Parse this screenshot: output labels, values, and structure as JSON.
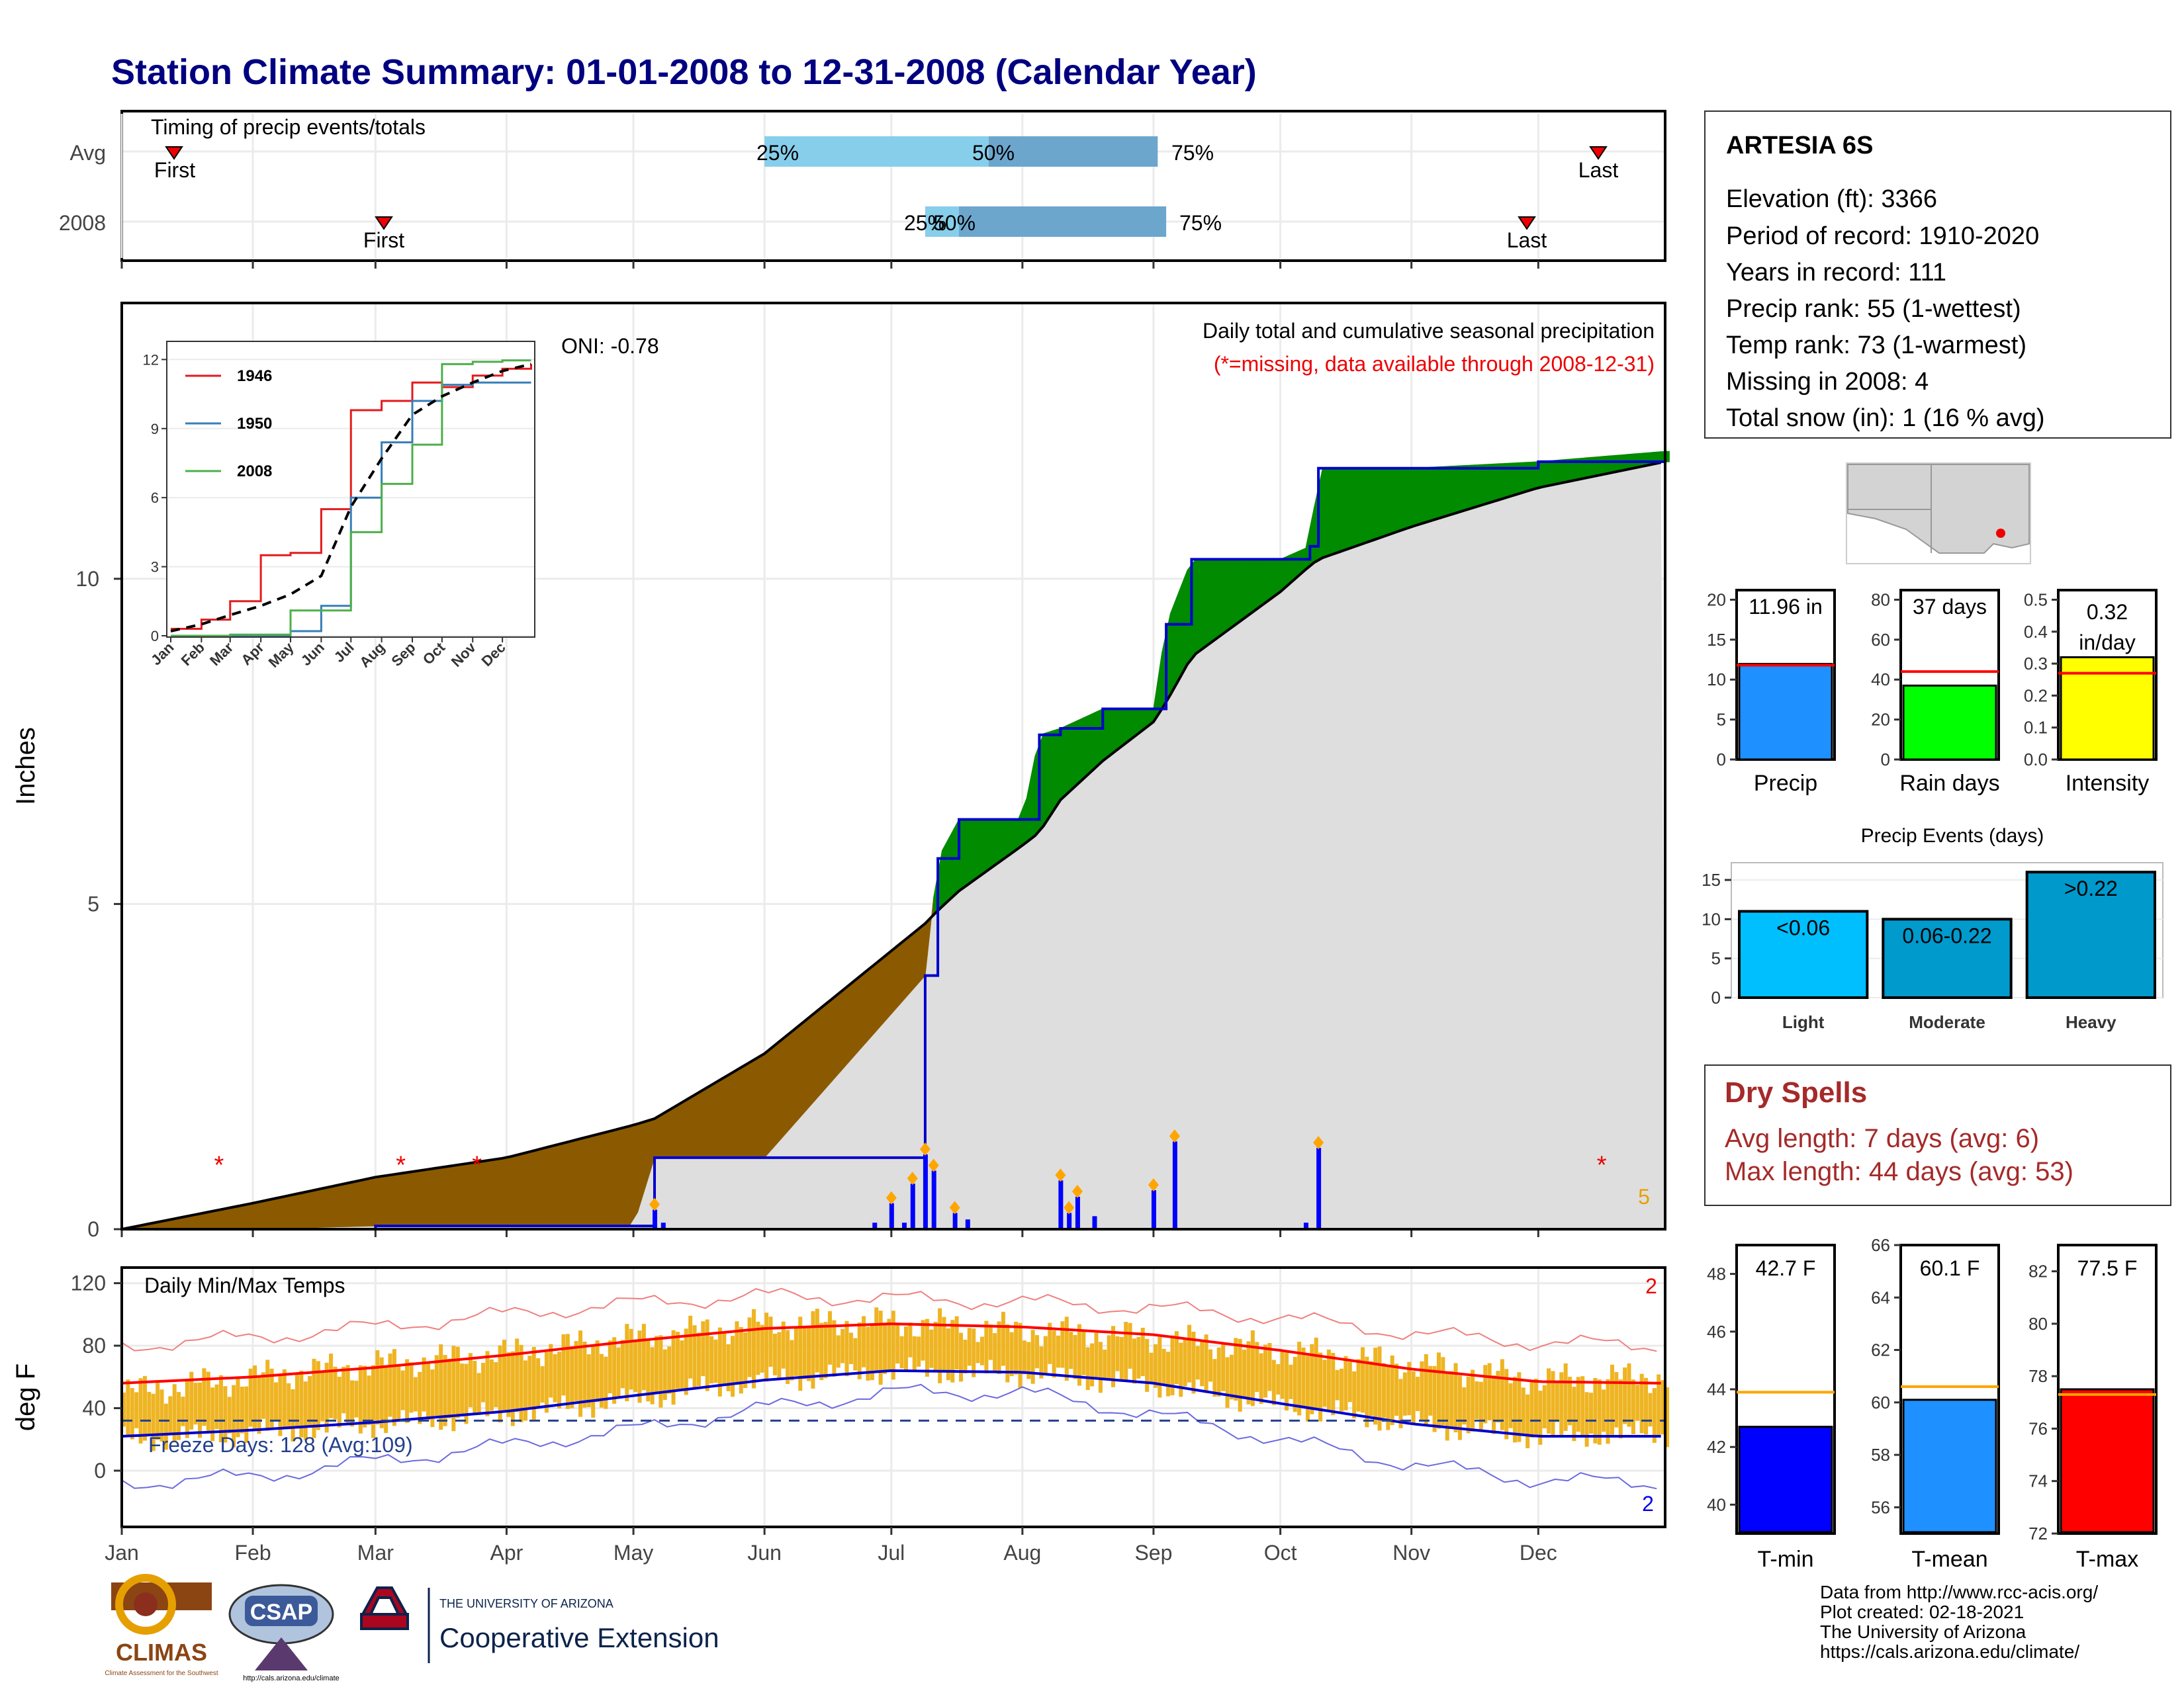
{
  "page": {
    "title": "Station Climate Summary: 01-01-2008 to 12-31-2008 (Calendar Year)",
    "footer": [
      "Data from http://www.rcc-acis.org/",
      "Plot created: 02-18-2021",
      "The University of Arizona",
      "https://cals.arizona.edu/climate/"
    ],
    "logos": {
      "climas": "CLIMAS",
      "climas_tagline": "Climate Assessment for the Southwest",
      "csap": "CSAP",
      "csap_url": "http://cals.arizona.edu/climate",
      "ua_line1": "THE UNIVERSITY OF ARIZONA",
      "ua_line2": "Cooperative Extension"
    }
  },
  "timing": {
    "title": "Timing of precip events/totals",
    "row_labels": [
      "Avg",
      "2008"
    ],
    "first_label": "First",
    "last_label": "Last",
    "pct_labels": [
      "25%",
      "50%",
      "75%"
    ],
    "avg": {
      "first": "Jan 15",
      "p25": "Jun 1",
      "p50": "Jul 24",
      "p75": "Sep 2",
      "last": "Dec 16"
    },
    "y2008": {
      "first": "Mar 3",
      "p25": "Jul 9",
      "p50": "Jul 17",
      "p75": "Sep 4",
      "last": "Dec 1"
    }
  },
  "precip_panel": {
    "ylabel": "Inches",
    "y_ticks": [
      "0",
      "5",
      "10"
    ],
    "ylim": [
      0,
      12.5
    ],
    "heading": "Daily total and cumulative seasonal precipitation",
    "missing_note": "(*=missing, data available through 2008-12-31)",
    "oni": "ONI: -0.78",
    "corner_count": "5",
    "missing_marker": "*",
    "colors": {
      "deficit": "#8B5A00",
      "surplus": "#008B00",
      "normal_fill": "#DEDEDE",
      "cumulative": "#0000CD"
    }
  },
  "inset": {
    "y_ticks": [
      "0",
      "3",
      "6",
      "9",
      "12"
    ],
    "months": [
      "Jan",
      "Feb",
      "Mar",
      "Apr",
      "May",
      "Jun",
      "Jul",
      "Aug",
      "Sep",
      "Oct",
      "Nov",
      "Dec"
    ],
    "legend": [
      {
        "name": "1946",
        "color": "#E41A1C"
      },
      {
        "name": "1950",
        "color": "#377EB8"
      },
      {
        "name": "2008",
        "color": "#4DAF4A"
      }
    ]
  },
  "temp_panel": {
    "ylabel": "deg F",
    "title": "Daily Min/Max Temps",
    "y_ticks": [
      "0",
      "40",
      "80",
      "120"
    ],
    "freeze": "Freeze Days: 128 (Avg:109)",
    "count_top": "2",
    "count_bottom": "2",
    "months": [
      "Jan",
      "Feb",
      "Mar",
      "Apr",
      "May",
      "Jun",
      "Jul",
      "Aug",
      "Sep",
      "Oct",
      "Nov",
      "Dec"
    ]
  },
  "station": {
    "name": "ARTESIA 6S",
    "lines": [
      "Elevation (ft): 3366",
      "Period of record: 1910-2020",
      "Years in record: 111",
      "Precip rank: 55 (1-wettest)",
      "Temp rank: 73 (1-warmest)",
      "Missing in 2008: 4",
      "Total snow (in): 1 (16 % avg)"
    ]
  },
  "summary_bars": [
    {
      "label": "Precip",
      "value": 11.96,
      "display": "11.96 in",
      "avg": 11.8,
      "max": 20,
      "ticks": [
        "0",
        "5",
        "10",
        "15",
        "20"
      ],
      "color": "#1E90FF"
    },
    {
      "label": "Rain days",
      "value": 37,
      "display": "37 days",
      "avg": 44,
      "max": 80,
      "ticks": [
        "0",
        "20",
        "40",
        "60",
        "80"
      ],
      "color": "#00FF00"
    },
    {
      "label": "Intensity",
      "value": 0.32,
      "display": "0.32 in/day",
      "avg": 0.27,
      "max": 0.5,
      "ticks": [
        "0.0",
        "0.1",
        "0.2",
        "0.3",
        "0.4",
        "0.5"
      ],
      "color": "#FFFF00"
    }
  ],
  "events": {
    "title": "Precip Events (days)",
    "categories": [
      "Light",
      "Moderate",
      "Heavy"
    ],
    "labels": [
      "<0.06",
      "0.06-0.22",
      ">0.22"
    ],
    "values": [
      11,
      10,
      16
    ],
    "ticks": [
      "0",
      "5",
      "10",
      "15"
    ],
    "colors": [
      "#00BFFF",
      "#009ACD",
      "#0099CC"
    ]
  },
  "dry_spells": {
    "title": "Dry Spells",
    "avg_line": "Avg length: 7 days (avg: 6)",
    "max_line": "Max length: 44 days (avg: 53)"
  },
  "temp_bars": [
    {
      "label": "T-min",
      "value": 42.7,
      "display": "42.7 F",
      "avg": 43.9,
      "ticks": [
        "40",
        "42",
        "44",
        "46",
        "48"
      ],
      "lim": [
        39,
        49
      ],
      "color": "#0000FF"
    },
    {
      "label": "T-mean",
      "value": 60.1,
      "display": "60.1 F",
      "avg": 60.6,
      "ticks": [
        "56",
        "58",
        "60",
        "62",
        "64",
        "66"
      ],
      "lim": [
        55,
        66
      ],
      "color": "#1E90FF"
    },
    {
      "label": "T-max",
      "value": 77.5,
      "display": "77.5 F",
      "avg": 77.3,
      "ticks": [
        "72",
        "74",
        "76",
        "78",
        "80",
        "82"
      ],
      "lim": [
        72,
        83
      ],
      "color": "#FF0000"
    }
  ],
  "chart_data": [
    {
      "type": "area",
      "title": "Daily total and cumulative seasonal precipitation",
      "ylabel": "Inches",
      "ylim": [
        0,
        12.5
      ],
      "x": [
        "Jan 1",
        "Feb 1",
        "Mar 1",
        "Apr 1",
        "May 1",
        "May 6",
        "Jun 1",
        "Jul 9",
        "Jul 12",
        "Jul 17",
        "Aug 1",
        "Aug 5",
        "Aug 10",
        "Aug 20",
        "Sep 1",
        "Sep 4",
        "Sep 10",
        "Oct 1",
        "Oct 8",
        "Oct 10",
        "Nov 1",
        "Dec 1",
        "Dec 31"
      ],
      "series": [
        {
          "name": "2008",
          "values": [
            0.0,
            0.0,
            0.05,
            0.05,
            0.05,
            1.1,
            1.1,
            3.9,
            5.7,
            6.3,
            6.3,
            7.6,
            7.7,
            8.0,
            8.0,
            9.3,
            10.3,
            10.3,
            10.5,
            11.7,
            11.7,
            11.8,
            11.96
          ]
        },
        {
          "name": "Avg",
          "values": [
            0.0,
            0.4,
            0.8,
            1.1,
            1.6,
            1.7,
            2.7,
            4.7,
            4.9,
            5.2,
            5.9,
            6.1,
            6.6,
            7.2,
            7.8,
            8.1,
            8.8,
            9.8,
            10.2,
            10.3,
            10.8,
            11.4,
            11.8
          ]
        }
      ],
      "daily_bars": {
        "dates": [
          "May 6",
          "May 8",
          "Jun 27",
          "Jul 1",
          "Jul 4",
          "Jul 6",
          "Jul 9",
          "Jul 11",
          "Jul 16",
          "Jul 19",
          "Aug 10",
          "Aug 12",
          "Aug 14",
          "Aug 18",
          "Sep 1",
          "Sep 6",
          "Oct 7",
          "Oct 10"
        ],
        "values": [
          0.3,
          0.1,
          0.1,
          0.4,
          0.1,
          0.7,
          1.15,
          0.9,
          0.25,
          0.15,
          0.75,
          0.25,
          0.5,
          0.2,
          0.6,
          1.35,
          0.1,
          1.25
        ]
      },
      "missing_days": [
        "Jan 24",
        "Mar 7",
        "Mar 25",
        "Dec 16"
      ]
    },
    {
      "type": "line",
      "title": "",
      "x": [
        "Jan",
        "Feb",
        "Mar",
        "Apr",
        "May",
        "Jun",
        "Jul",
        "Aug",
        "Sep",
        "Oct",
        "Nov",
        "Dec",
        "Dec 31"
      ],
      "ylim": [
        0,
        12.5
      ],
      "series": [
        {
          "name": "1946",
          "values": [
            0.3,
            0.7,
            1.5,
            3.5,
            3.6,
            5.5,
            9.8,
            10.2,
            11.0,
            10.8,
            11.3,
            11.6,
            11.8
          ]
        },
        {
          "name": "1950",
          "values": [
            0.0,
            0.0,
            0.0,
            0.0,
            0.2,
            1.3,
            6.0,
            8.4,
            10.2,
            10.9,
            11.0,
            11.0,
            11.0
          ]
        },
        {
          "name": "2008",
          "values": [
            0.0,
            0.0,
            0.05,
            0.05,
            1.1,
            1.1,
            4.5,
            6.6,
            8.3,
            11.8,
            11.9,
            11.96,
            11.96
          ]
        },
        {
          "name": "Avg",
          "values": [
            0.2,
            0.5,
            0.9,
            1.3,
            1.8,
            2.6,
            5.6,
            7.7,
            9.6,
            10.4,
            11.0,
            11.5,
            11.8
          ]
        }
      ]
    },
    {
      "type": "line",
      "title": "Daily Min/Max Temps",
      "ylabel": "deg F",
      "ylim": [
        -20,
        120
      ],
      "x": [
        "Jan",
        "Feb",
        "Mar",
        "Apr",
        "May",
        "Jun",
        "Jul",
        "Aug",
        "Sep",
        "Oct",
        "Nov",
        "Dec",
        "Dec 31"
      ],
      "series": [
        {
          "name": "Avg max",
          "values": [
            56,
            60,
            66,
            74,
            83,
            91,
            94,
            92,
            87,
            77,
            65,
            57,
            56
          ]
        },
        {
          "name": "Avg min",
          "values": [
            22,
            26,
            31,
            38,
            48,
            58,
            64,
            63,
            56,
            43,
            30,
            22,
            22
          ]
        },
        {
          "name": "Record max",
          "values": [
            80,
            85,
            92,
            100,
            107,
            112,
            110,
            108,
            104,
            98,
            88,
            82,
            80
          ]
        },
        {
          "name": "Record min",
          "values": [
            -8,
            -4,
            6,
            16,
            26,
            40,
            50,
            50,
            36,
            20,
            4,
            -6,
            -8
          ]
        },
        {
          "name": "2008 max",
          "values": [
            50,
            60,
            68,
            75,
            85,
            94,
            95,
            90,
            85,
            77,
            68,
            58,
            60
          ]
        },
        {
          "name": "2008 min",
          "values": [
            20,
            24,
            30,
            36,
            46,
            58,
            64,
            62,
            55,
            42,
            30,
            22,
            24
          ]
        }
      ]
    },
    {
      "type": "bar",
      "title": "Precip Events (days)",
      "categories": [
        "Light",
        "Moderate",
        "Heavy"
      ],
      "values": [
        11,
        10,
        16
      ],
      "ylim": [
        0,
        17
      ]
    },
    {
      "type": "bar",
      "categories": [
        "Precip",
        "Rain days",
        "Intensity",
        "T-min",
        "T-mean",
        "T-max"
      ],
      "values": [
        11.96,
        37,
        0.32,
        42.7,
        60.1,
        77.5
      ]
    }
  ]
}
